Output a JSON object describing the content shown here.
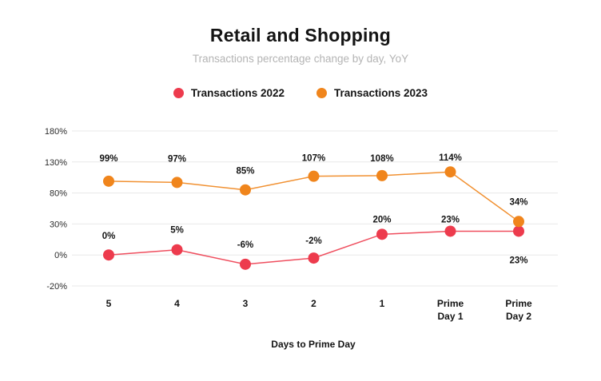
{
  "header": {
    "title": "Retail and Shopping",
    "subtitle": "Transactions percentage change by day, YoY"
  },
  "legend": {
    "items": [
      {
        "label": "Transactions 2022",
        "color": "#ED3B4D"
      },
      {
        "label": "Transactions 2023",
        "color": "#F0851C"
      }
    ]
  },
  "chart_data": {
    "type": "line",
    "title": "Retail and Shopping",
    "subtitle": "Transactions percentage change by day, YoY",
    "xlabel": "Days to Prime Day",
    "categories": [
      [
        "5"
      ],
      [
        "4"
      ],
      [
        "3"
      ],
      [
        "2"
      ],
      [
        "1"
      ],
      [
        "Prime",
        "Day 1"
      ],
      [
        "Prime",
        "Day 2"
      ]
    ],
    "y_ticks": {
      "values": [
        180,
        130,
        80,
        30,
        0,
        -20
      ],
      "labels": [
        "180%",
        "130%",
        "80%",
        "30%",
        "0%",
        "-20%"
      ]
    },
    "series": [
      {
        "name": "Transactions 2022",
        "color": "#ED3B4D",
        "values": [
          0,
          5,
          -6,
          -2,
          20,
          23,
          23
        ],
        "labels": [
          "0%",
          "5%",
          "-6%",
          "-2%",
          "20%",
          "23%",
          "23%"
        ],
        "label_dy": [
          -20,
          -21,
          -21,
          -18,
          -15,
          -11,
          40
        ]
      },
      {
        "name": "Transactions 2023",
        "color": "#F0851C",
        "values": [
          99,
          97,
          85,
          107,
          108,
          114,
          34
        ],
        "labels": [
          "99%",
          "97%",
          "85%",
          "107%",
          "108%",
          "114%",
          "34%"
        ],
        "label_dy": [
          -25,
          -26,
          -20,
          -19,
          -18,
          -14,
          -21
        ]
      }
    ],
    "grid": true,
    "legend_position": "top",
    "grid_color": "#E8E8E8",
    "text_color": "#141414",
    "tick_color": "#2B2B2B"
  }
}
